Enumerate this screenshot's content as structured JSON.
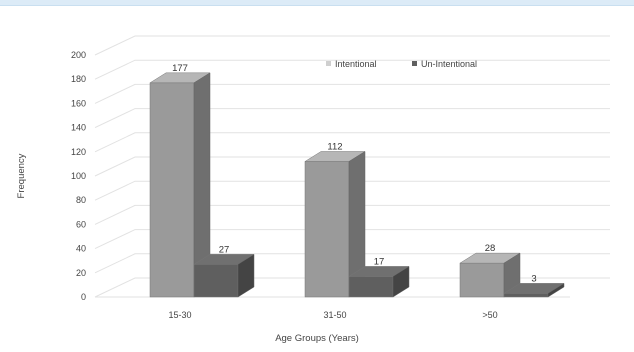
{
  "chart_data": {
    "type": "bar",
    "style": "3d-clustered",
    "title": "",
    "xlabel": "Age Groups (Years)",
    "ylabel": "Frequency",
    "ylim": [
      0,
      200
    ],
    "yticks": [
      0,
      20,
      40,
      60,
      80,
      100,
      120,
      140,
      160,
      180,
      200
    ],
    "grid": true,
    "legend_position": "top-right",
    "categories": [
      "15-30",
      "31-50",
      ">50"
    ],
    "series": [
      {
        "name": "Intentional",
        "values": [
          177,
          112,
          28
        ],
        "color": "#9a9a9a"
      },
      {
        "name": "Un-Intentional",
        "values": [
          27,
          17,
          3
        ],
        "color": "#5f5f5f"
      }
    ]
  }
}
